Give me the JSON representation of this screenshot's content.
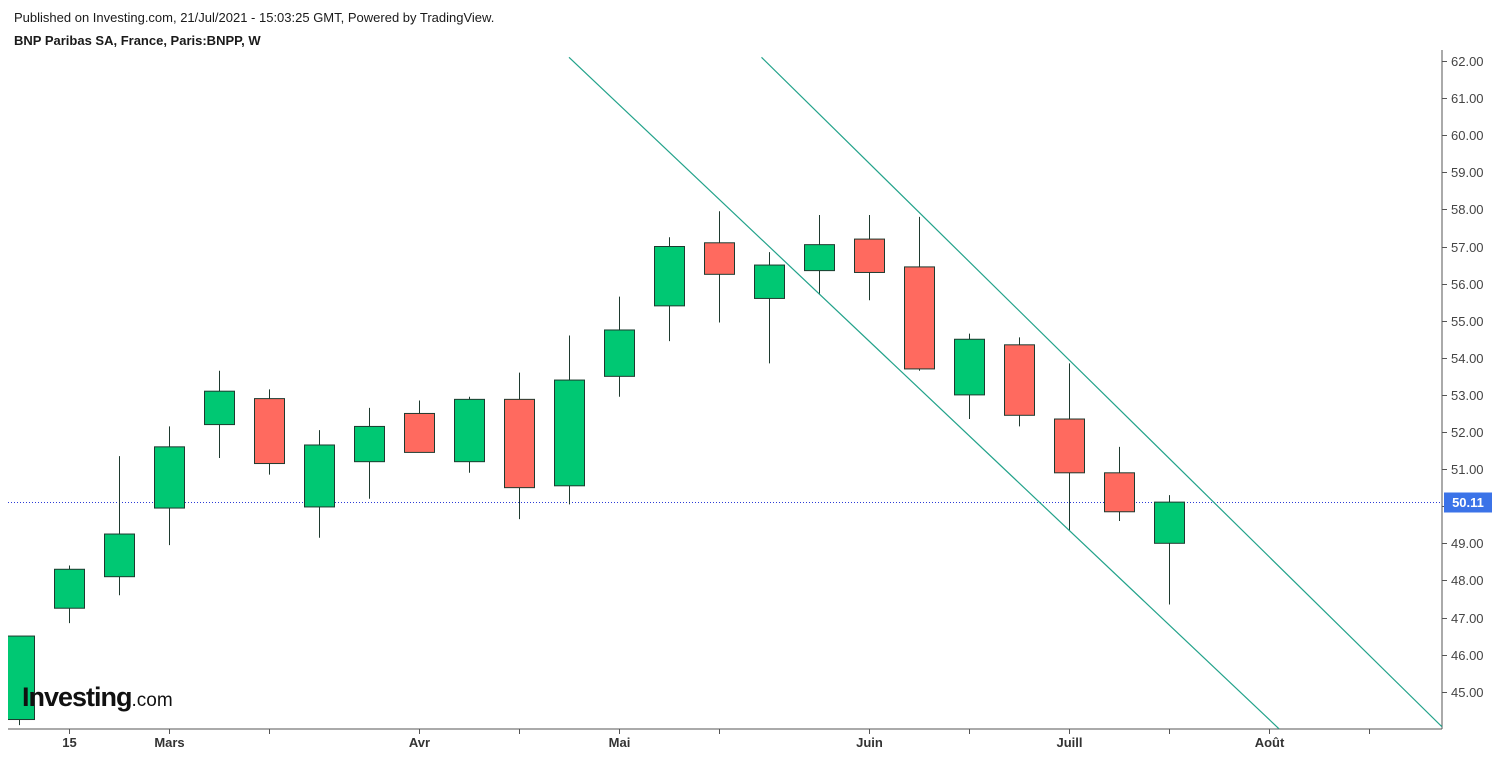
{
  "header": {
    "published": "Published on Investing.com, 21/Jul/2021 - 15:03:25 GMT, Powered by TradingView.",
    "instrument": "BNP Paribas SA, France, Paris:BNPP, W"
  },
  "logo": {
    "brand": "Investing",
    "suffix": ".com"
  },
  "colors": {
    "up": "#00c873",
    "down": "#ff6a5f",
    "wick": "#1e3a2f",
    "trendline": "#22a28a",
    "last_price_line": "#2c3bd6",
    "last_price_tag": "#3b73e8",
    "axis": "#555555"
  },
  "chart_data": {
    "type": "candlestick",
    "timeframe": "W",
    "ylim": [
      44.0,
      62.0
    ],
    "yticks": [
      "45.00",
      "46.00",
      "47.00",
      "48.00",
      "49.00",
      "50.00",
      "51.00",
      "52.00",
      "53.00",
      "54.00",
      "55.00",
      "56.00",
      "57.00",
      "58.00",
      "59.00",
      "60.00",
      "61.00",
      "62.00"
    ],
    "xtick_labels": [
      "15",
      "Mars",
      "Avr",
      "Mai",
      "Juin",
      "Juill",
      "Août"
    ],
    "last_price": "50.11",
    "candles": [
      {
        "o": 44.25,
        "h": 46.5,
        "l": 44.1,
        "c": 46.5
      },
      {
        "o": 47.25,
        "h": 48.4,
        "l": 46.85,
        "c": 48.3
      },
      {
        "o": 48.1,
        "h": 51.35,
        "l": 47.6,
        "c": 49.25
      },
      {
        "o": 49.95,
        "h": 52.15,
        "l": 48.95,
        "c": 51.6
      },
      {
        "o": 52.2,
        "h": 53.65,
        "l": 51.3,
        "c": 53.1
      },
      {
        "o": 52.9,
        "h": 53.15,
        "l": 50.85,
        "c": 51.15
      },
      {
        "o": 49.98,
        "h": 52.05,
        "l": 49.15,
        "c": 51.65
      },
      {
        "o": 51.2,
        "h": 52.65,
        "l": 50.2,
        "c": 52.15
      },
      {
        "o": 52.5,
        "h": 52.85,
        "l": 51.45,
        "c": 51.45
      },
      {
        "o": 51.2,
        "h": 52.95,
        "l": 50.9,
        "c": 52.88
      },
      {
        "o": 52.88,
        "h": 53.6,
        "l": 49.65,
        "c": 50.5
      },
      {
        "o": 50.55,
        "h": 54.6,
        "l": 50.05,
        "c": 53.4
      },
      {
        "o": 53.5,
        "h": 55.65,
        "l": 52.95,
        "c": 54.75
      },
      {
        "o": 55.4,
        "h": 57.25,
        "l": 54.45,
        "c": 57.0
      },
      {
        "o": 57.1,
        "h": 57.95,
        "l": 54.95,
        "c": 56.25
      },
      {
        "o": 55.6,
        "h": 56.85,
        "l": 53.85,
        "c": 56.5
      },
      {
        "o": 56.35,
        "h": 57.85,
        "l": 55.7,
        "c": 57.05
      },
      {
        "o": 57.2,
        "h": 57.85,
        "l": 55.55,
        "c": 56.3
      },
      {
        "o": 56.45,
        "h": 57.8,
        "l": 53.65,
        "c": 53.7
      },
      {
        "o": 53.0,
        "h": 54.65,
        "l": 52.35,
        "c": 54.5
      },
      {
        "o": 54.35,
        "h": 54.55,
        "l": 52.15,
        "c": 52.45
      },
      {
        "o": 52.35,
        "h": 53.85,
        "l": 49.35,
        "c": 50.9
      },
      {
        "o": 50.9,
        "h": 51.6,
        "l": 49.6,
        "c": 49.85
      },
      {
        "o": 49.0,
        "h": 50.3,
        "l": 47.35,
        "c": 50.11
      }
    ],
    "trendlines": [
      {
        "from": {
          "week": 11.0,
          "price": 62.1
        },
        "to": {
          "week": 25.2,
          "price": 44.0
        }
      },
      {
        "from": {
          "week": 14.85,
          "price": 62.1
        },
        "to": {
          "week": 28.5,
          "price": 44.0
        }
      }
    ]
  }
}
